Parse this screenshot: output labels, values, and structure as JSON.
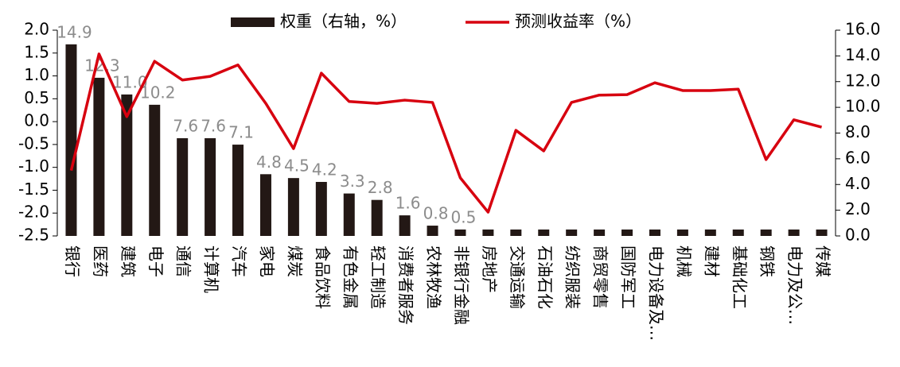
{
  "chart_data": {
    "type": "bar_line",
    "categories": [
      "银行",
      "医药",
      "建筑",
      "电子",
      "通信",
      "计算机",
      "汽车",
      "家电",
      "煤炭",
      "食品饮料",
      "有色金属",
      "轻工制造",
      "消费者服务",
      "农林牧渔",
      "非银行金融",
      "房地产",
      "交通运输",
      "石油石化",
      "纺织服装",
      "商贸零售",
      "国防军工",
      "电力设备及…",
      "机械",
      "建材",
      "基础化工",
      "钢铁",
      "电力及公…",
      "传媒"
    ],
    "series": [
      {
        "name": "权重（右轴，%）",
        "type": "bar",
        "axis": "y2",
        "color": "#231815",
        "values": [
          14.9,
          12.3,
          11.0,
          10.2,
          7.6,
          7.6,
          7.1,
          4.8,
          4.5,
          4.2,
          3.3,
          2.8,
          1.6,
          0.8,
          0.5,
          0.5,
          0.5,
          0.5,
          0.5,
          0.5,
          0.5,
          0.5,
          0.5,
          0.5,
          0.5,
          0.5,
          0.5,
          0.5
        ],
        "value_labels": [
          "14.9",
          "12.3",
          "11.0",
          "10.2",
          "7.6",
          "7.6",
          "7.1",
          "4.8",
          "4.5",
          "4.2",
          "3.3",
          "2.8",
          "1.6",
          "0.8",
          "0.5",
          null,
          null,
          null,
          null,
          null,
          null,
          null,
          null,
          null,
          null,
          null,
          null,
          null
        ]
      },
      {
        "name": "预测收益率（%）",
        "type": "line",
        "axis": "y",
        "color": "#d7000f",
        "values": [
          -1.07,
          1.48,
          0.11,
          1.32,
          0.91,
          0.99,
          1.24,
          0.4,
          -0.59,
          1.06,
          0.44,
          0.4,
          0.47,
          0.42,
          -1.23,
          -1.98,
          -0.19,
          -0.64,
          0.42,
          0.58,
          0.59,
          0.85,
          0.68,
          0.68,
          0.71,
          -0.83,
          0.04,
          -0.12
        ]
      }
    ],
    "ylim": [
      -2.5,
      2.0
    ],
    "yticks": [
      {
        "value": 2.0,
        "label": "2.0"
      },
      {
        "value": 1.5,
        "label": "1.5"
      },
      {
        "value": 1.0,
        "label": "1.0"
      },
      {
        "value": 0.5,
        "label": "0.5"
      },
      {
        "value": 0.0,
        "label": "0.0"
      },
      {
        "value": -0.5,
        "label": "-0.5"
      },
      {
        "value": -1.0,
        "label": "-1.0"
      },
      {
        "value": -1.5,
        "label": "-1.5"
      },
      {
        "value": -2.0,
        "label": "-2.0"
      },
      {
        "value": -2.5,
        "label": "-2.5"
      }
    ],
    "y2lim": [
      0,
      16
    ],
    "y2ticks": [
      {
        "value": 16,
        "label": "16.0"
      },
      {
        "value": 14,
        "label": "14.0"
      },
      {
        "value": 12,
        "label": "12.0"
      },
      {
        "value": 10,
        "label": "10.0"
      },
      {
        "value": 8,
        "label": "8.0"
      },
      {
        "value": 6,
        "label": "6.0"
      },
      {
        "value": 4,
        "label": "4.0"
      },
      {
        "value": 2,
        "label": "2.0"
      },
      {
        "value": 0,
        "label": "0.0"
      }
    ],
    "grid": false
  }
}
